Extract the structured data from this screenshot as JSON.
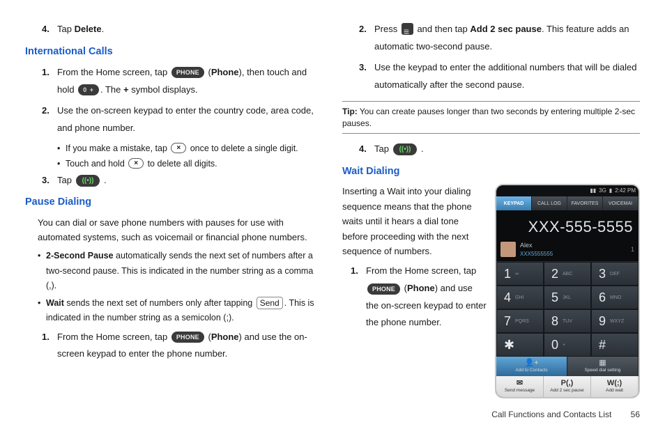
{
  "left": {
    "step4": {
      "num": "4.",
      "text": "Tap ",
      "bold": "Delete",
      "tail": "."
    },
    "h1": "International Calls",
    "ic": {
      "s1": {
        "num": "1.",
        "pre": "From the Home screen, tap ",
        "phone_pill": "PHONE",
        "mid1": " (",
        "phone_bold": "Phone",
        "mid2": "), then touch and hold ",
        "zero_pill": "0  +",
        "mid3": ". The ",
        "plus_bold": "+",
        "tail": " symbol displays."
      },
      "s2": {
        "num": "2.",
        "text": "Use the on-screen keypad to enter the country code, area code, and phone number."
      },
      "b1": {
        "pre": "If you make a mistake, tap ",
        "x": "×",
        "tail": " once to delete a single digit."
      },
      "b2": {
        "pre": "Touch and hold ",
        "x": "×",
        "tail": " to delete all digits."
      },
      "s3": {
        "num": "3.",
        "pre": "Tap ",
        "call": "((•))",
        "tail": " ."
      }
    },
    "h2": "Pause Dialing",
    "pd_intro": "You can dial or save phone numbers with pauses for use with automated systems, such as voicemail or financial phone numbers.",
    "pd_b1": {
      "bold": "2-Second Pause",
      "text": " automatically sends the next set of numbers after a two-second pause. This is indicated in the number string as a comma (,)."
    },
    "pd_b2": {
      "bold": "Wait",
      "text1": " sends the next set of numbers only after tapping ",
      "send": "Send",
      "text2": ". This is indicated in the number string as a semicolon (;)."
    },
    "pd_s1": {
      "num": "1.",
      "pre": "From the Home screen, tap ",
      "phone_pill": "PHONE",
      "mid1": " (",
      "phone_bold": "Phone",
      "tail": ") and use the on-screen keypad to enter the phone number."
    }
  },
  "right": {
    "s2": {
      "num": "2.",
      "pre": "Press ",
      "mid": " and then tap ",
      "bold": "Add 2 sec pause",
      "tail": ". This feature adds an automatic two-second pause."
    },
    "s3": {
      "num": "3.",
      "text": "Use the keypad to enter the additional numbers that will be dialed automatically after the second pause."
    },
    "tip": {
      "bold": "Tip:",
      "text": " You can create pauses longer than two seconds by entering multiple 2-sec pauses."
    },
    "s4": {
      "num": "4.",
      "pre": "Tap ",
      "call": "((•))",
      "tail": " ."
    },
    "h1": "Wait Dialing",
    "wd_intro": "Inserting a Wait into your dialing sequence means that the phone waits until it hears a dial tone before proceeding with the next sequence of numbers.",
    "wd_s1": {
      "num": "1.",
      "pre": "From the Home screen, tap ",
      "phone_pill": "PHONE",
      "mid1": " (",
      "phone_bold": "Phone",
      "tail": ") and use the on-screen keypad to enter the phone number."
    }
  },
  "phone": {
    "statusbar": {
      "sig": "▮▮",
      "net": "3G",
      "batt": "▮",
      "time": "2:42 PM"
    },
    "tabs": {
      "t1": "KEYPAD",
      "t2": "CALL LOG",
      "t3": "FAVORITES",
      "t4": "VOICEMAI"
    },
    "display": "XXX-555-5555",
    "contact": {
      "name": "Alex",
      "num": "XXX5555555",
      "count": "1"
    },
    "keys": [
      [
        "1",
        "∞"
      ],
      [
        "2",
        "ABC"
      ],
      [
        "3",
        "DEF"
      ],
      [
        "4",
        "GHI"
      ],
      [
        "5",
        "JKL"
      ],
      [
        "6",
        "MNO"
      ],
      [
        "7",
        "PQRS"
      ],
      [
        "8",
        "TUV"
      ],
      [
        "9",
        "WXYZ"
      ],
      [
        "✱",
        ""
      ],
      [
        "0",
        "+"
      ],
      [
        "#",
        ""
      ]
    ],
    "actions": {
      "a1": "Add to Contacts",
      "a2": "Speed dial setting"
    },
    "menu": {
      "m1": {
        "icon": "✉",
        "lbl": "Send message"
      },
      "m2": {
        "icon": "P(,)",
        "lbl": "Add 2 sec pause"
      },
      "m3": {
        "icon": "W(;)",
        "lbl": "Add wait"
      }
    }
  },
  "footer": {
    "title": "Call Functions and Contacts List",
    "page": "56"
  },
  "colors": {
    "heading_blue": "#1a5cc7",
    "pill_bg": "#3a3a3a",
    "phone_bg": "#1b1f24",
    "tab_active_top": "#6db3e6",
    "key_bg": "#3d444c",
    "key_digit": "#e8eaec",
    "key_letter": "#8a9098"
  }
}
